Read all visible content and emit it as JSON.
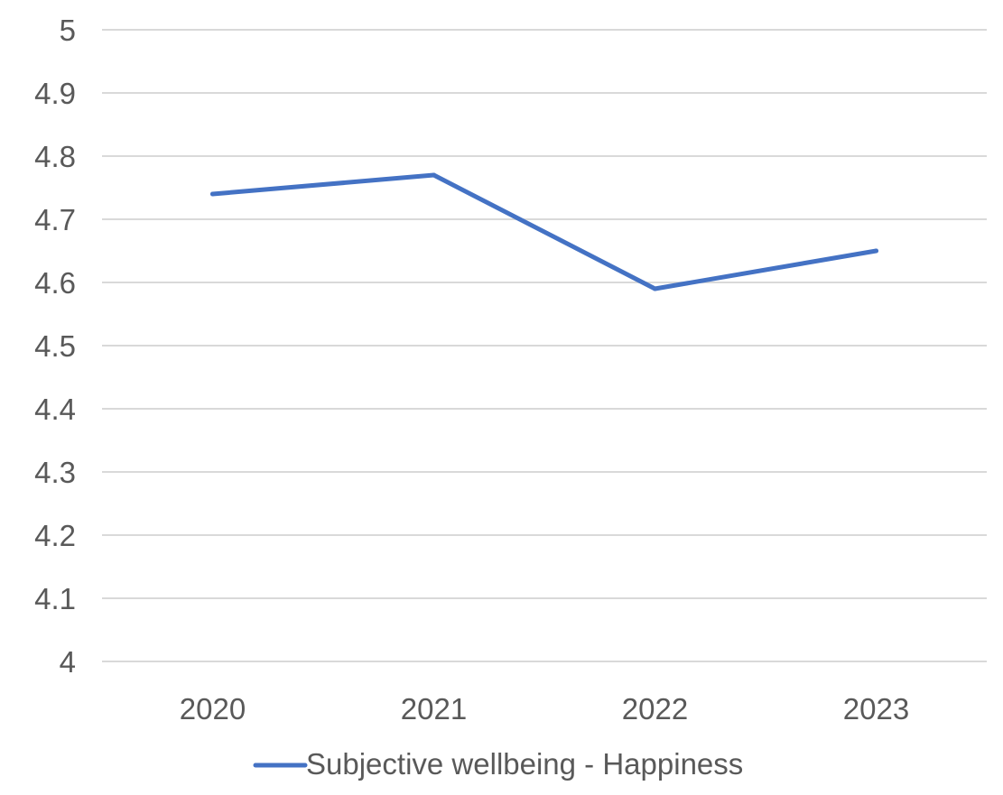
{
  "chart_data": {
    "type": "line",
    "categories": [
      "2020",
      "2021",
      "2022",
      "2023"
    ],
    "series": [
      {
        "name": "Subjective wellbeing - Happiness",
        "values": [
          4.74,
          4.77,
          4.59,
          4.65
        ],
        "color": "#4472C4"
      }
    ],
    "ylim": [
      4,
      5
    ],
    "yticks": [
      "4",
      "4.1",
      "4.2",
      "4.3",
      "4.4",
      "4.5",
      "4.6",
      "4.7",
      "4.8",
      "4.9",
      "5"
    ],
    "grid": true,
    "legend_position": "bottom",
    "title": "",
    "xlabel": "",
    "ylabel": ""
  }
}
